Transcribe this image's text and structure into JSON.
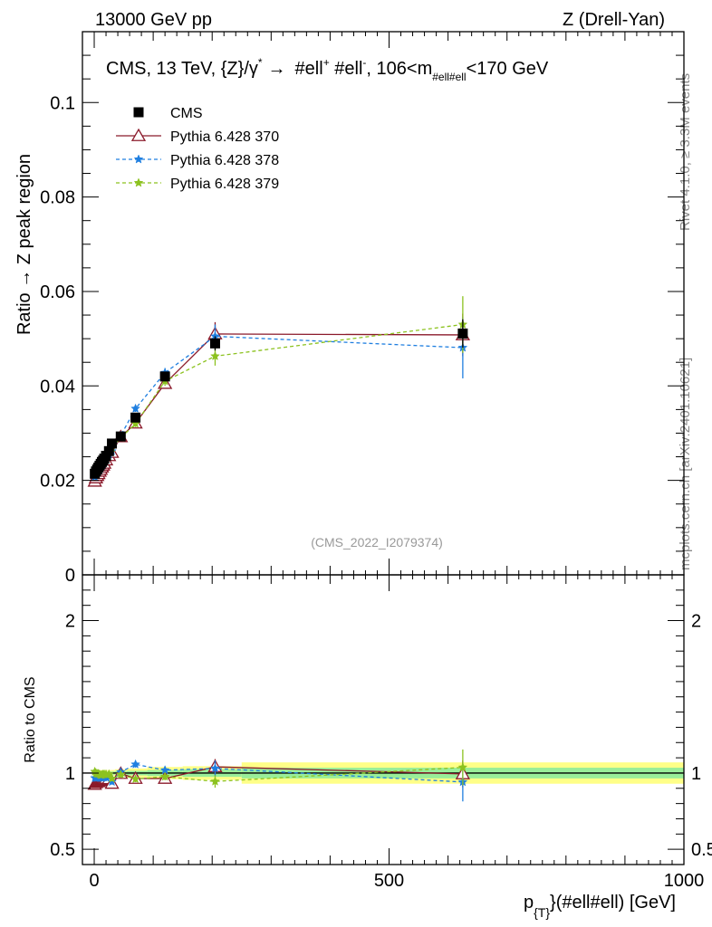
{
  "header": {
    "left": "13000 GeV pp",
    "right": "Z (Drell-Yan)"
  },
  "side_labels": {
    "rivet": "Rivet 4.1.0, ≥ 3.3M events",
    "mcplots": "mcplots.cern.ch [arXiv:2401.10621]"
  },
  "chart_data": {
    "type": "scatter",
    "title": {
      "prefix": "CMS, 13 TeV, {Z}/γ",
      "star": "*",
      "arrow": "→",
      "ell1": "#ell",
      "plus": "+",
      "ell2": " #ell",
      "minus": "-",
      "range_start": ",  106<m",
      "range_sub": "#ell#ell",
      "range_end": "<170 GeV"
    },
    "watermark": "(CMS_2022_I2079374)",
    "ylabel": "Ratio → Z peak region",
    "ratio_ylabel": "Ratio to CMS",
    "xlabel": {
      "p": "p",
      "sub": "{T}",
      "rest": "}(#ell#ell) [GeV]"
    },
    "xlim": [
      -20,
      1000
    ],
    "ylim": [
      0,
      0.115
    ],
    "ratio_ylim": [
      0.4,
      2.3
    ],
    "x_ticks": [
      "0",
      "500",
      "1000"
    ],
    "x_tick_values": [
      0,
      500,
      1000
    ],
    "y_ticks": [
      "0",
      "0.02",
      "0.04",
      "0.06",
      "0.08",
      "0.1"
    ],
    "y_tick_values": [
      0,
      0.02,
      0.04,
      0.06,
      0.08,
      0.1
    ],
    "ratio_ticks": [
      "0.5",
      "1",
      "2"
    ],
    "ratio_tick_values": [
      0.5,
      1,
      2
    ],
    "legend": [
      {
        "label": "CMS",
        "color": "#000000",
        "style": "marker"
      },
      {
        "label": "Pythia 6.428 370",
        "color": "#8b1a2b",
        "style": "solid",
        "marker": "triangle"
      },
      {
        "label": "Pythia 6.428 378",
        "color": "#1f7fe0",
        "style": "dashed",
        "marker": "star"
      },
      {
        "label": "Pythia 6.428 379",
        "color": "#8cc21f",
        "style": "dashed",
        "marker": "star"
      }
    ],
    "x": [
      1,
      3,
      5,
      7,
      9,
      11,
      13,
      15,
      17,
      20,
      25,
      30,
      45,
      70,
      120,
      205,
      625
    ],
    "data": {
      "name": "CMS",
      "values": [
        0.0214,
        0.0219,
        0.0223,
        0.0227,
        0.0231,
        0.0235,
        0.0239,
        0.0242,
        0.0246,
        0.0252,
        0.0262,
        0.0278,
        0.0293,
        0.0333,
        0.042,
        0.049,
        0.0511
      ],
      "errors": [
        0.0006,
        0.0006,
        0.0006,
        0.0006,
        0.0006,
        0.0006,
        0.0006,
        0.0006,
        0.0006,
        0.0006,
        0.0006,
        0.0006,
        0.0006,
        0.0008,
        0.001,
        0.0015,
        0.003
      ],
      "band_stat": [
        0.01,
        0.01,
        0.01,
        0.01,
        0.01,
        0.01,
        0.01,
        0.01,
        0.01,
        0.01,
        0.01,
        0.01,
        0.012,
        0.015,
        0.02,
        0.025,
        0.035
      ],
      "band_tot": [
        0.02,
        0.02,
        0.02,
        0.02,
        0.02,
        0.02,
        0.02,
        0.02,
        0.02,
        0.02,
        0.02,
        0.02,
        0.025,
        0.03,
        0.04,
        0.045,
        0.07
      ],
      "edges": [
        0,
        2,
        4,
        6,
        8,
        10,
        12,
        14,
        16,
        18,
        22,
        28,
        35,
        55,
        90,
        150,
        250,
        1000
      ]
    },
    "series": [
      {
        "name": "Pythia 6.428 370",
        "color": "#8b1a2b",
        "dash": "",
        "marker": "triangle",
        "values": [
          0.0198,
          0.0205,
          0.021,
          0.0214,
          0.0219,
          0.0223,
          0.0228,
          0.0232,
          0.0236,
          0.0243,
          0.0252,
          0.0259,
          0.0292,
          0.0321,
          0.0405,
          0.051,
          0.0508
        ],
        "errors": [
          0.0004,
          0.0004,
          0.0004,
          0.0004,
          0.0004,
          0.0004,
          0.0004,
          0.0004,
          0.0004,
          0.0004,
          0.0004,
          0.0005,
          0.0006,
          0.0007,
          0.001,
          0.0025,
          0.0045
        ]
      },
      {
        "name": "Pythia 6.428 378",
        "color": "#1f7fe0",
        "dash": "4,3",
        "marker": "star",
        "values": [
          0.0207,
          0.0212,
          0.0216,
          0.022,
          0.0224,
          0.0228,
          0.0231,
          0.0235,
          0.0239,
          0.0245,
          0.0255,
          0.0262,
          0.0295,
          0.0352,
          0.0428,
          0.0505,
          0.0481
        ],
        "errors": [
          0.0004,
          0.0004,
          0.0004,
          0.0004,
          0.0004,
          0.0004,
          0.0004,
          0.0004,
          0.0004,
          0.0004,
          0.0004,
          0.0005,
          0.0006,
          0.0007,
          0.001,
          0.0025,
          0.0065
        ]
      },
      {
        "name": "Pythia 6.428 379",
        "color": "#8cc21f",
        "dash": "4,3",
        "marker": "star",
        "values": [
          0.0216,
          0.0219,
          0.0222,
          0.0226,
          0.0229,
          0.0232,
          0.0236,
          0.024,
          0.0244,
          0.025,
          0.026,
          0.0268,
          0.029,
          0.032,
          0.041,
          0.0463,
          0.053
        ],
        "errors": [
          0.0004,
          0.0004,
          0.0004,
          0.0004,
          0.0004,
          0.0004,
          0.0004,
          0.0004,
          0.0004,
          0.0004,
          0.0004,
          0.0005,
          0.0006,
          0.0007,
          0.001,
          0.002,
          0.006
        ]
      }
    ]
  }
}
